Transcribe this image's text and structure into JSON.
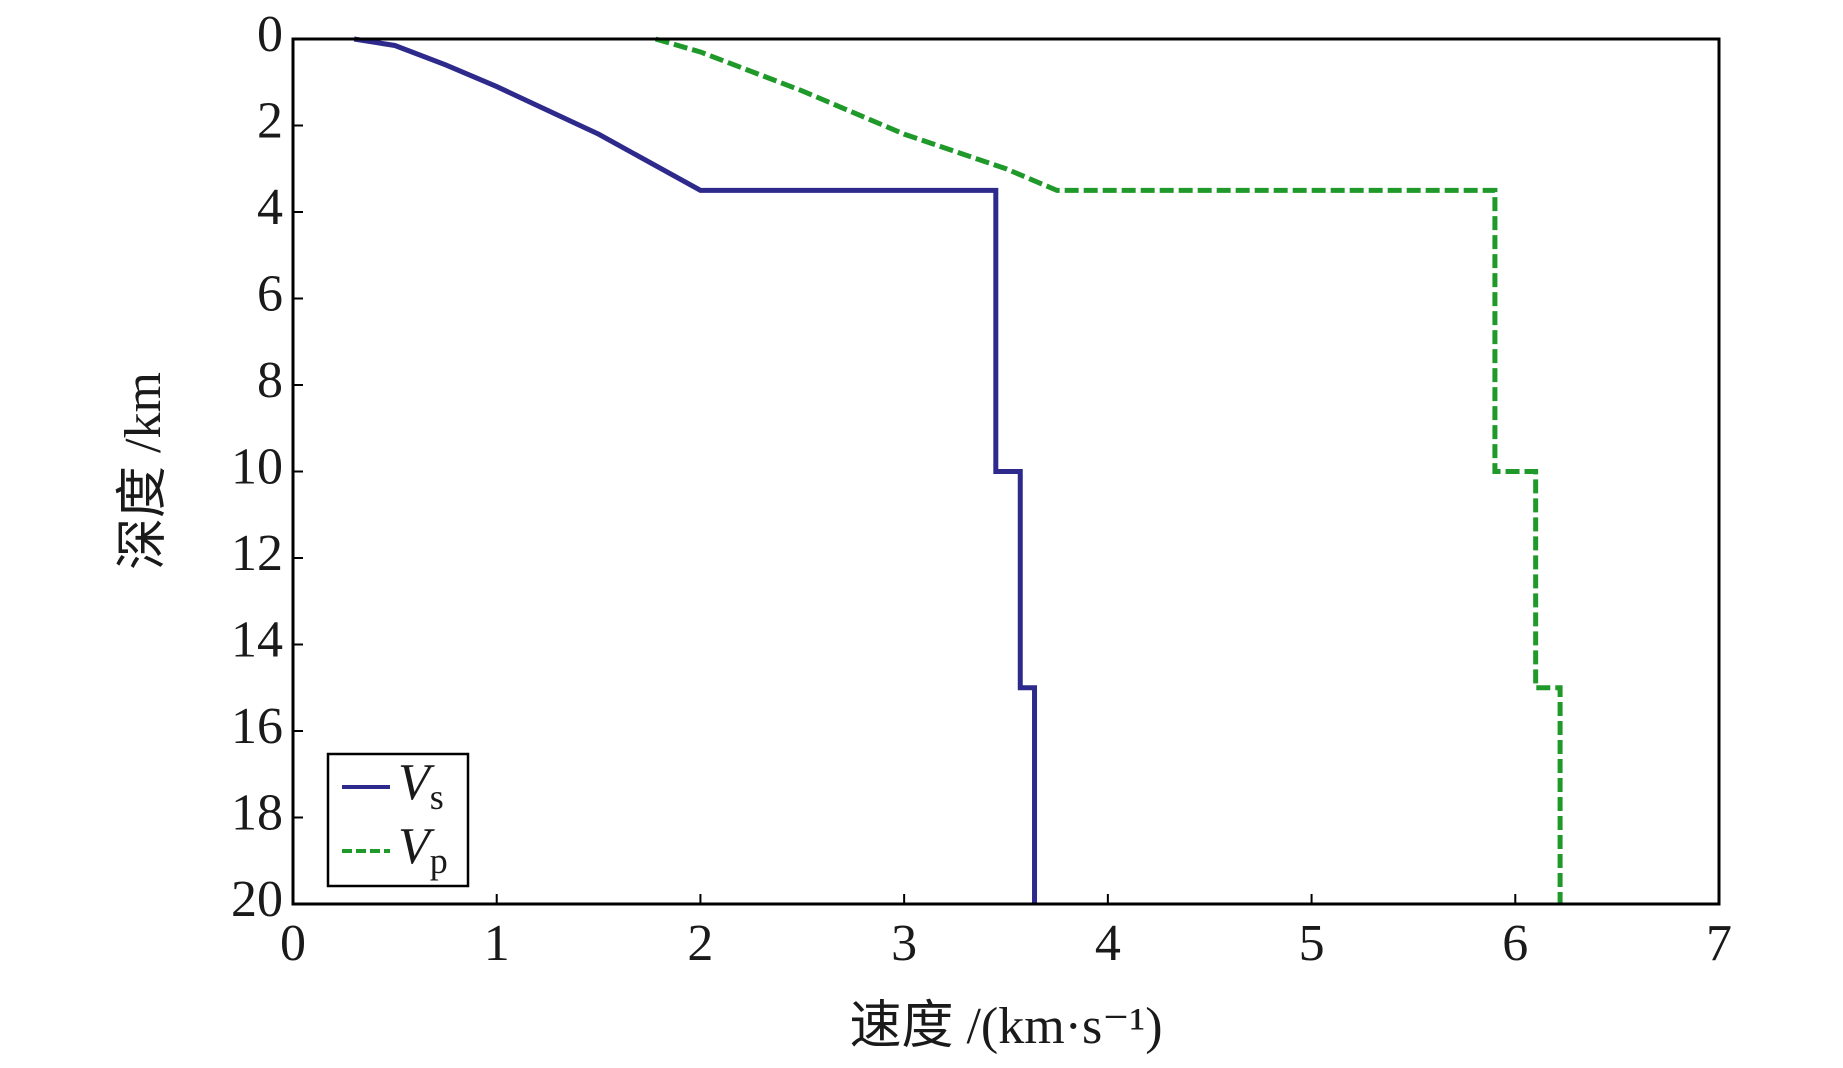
{
  "chart_data": {
    "type": "line",
    "xlabel": "速度 /(km·s⁻¹)",
    "ylabel": "深度 /km",
    "xlim": [
      0,
      7
    ],
    "xticks": [
      0,
      1,
      2,
      3,
      4,
      5,
      6,
      7
    ],
    "ylim": [
      0,
      20
    ],
    "yticks": [
      0,
      2,
      4,
      6,
      8,
      10,
      12,
      14,
      16,
      18,
      20
    ],
    "y_inverted": true,
    "legend": "lower left",
    "series": [
      {
        "name": "Vs",
        "color": "#2e2a8c",
        "dash": false,
        "x": [
          0.3,
          0.5,
          0.75,
          1,
          1.5,
          2,
          3.45,
          3.45,
          3.57,
          3.57,
          3.64,
          3.64
        ],
        "values": [
          0,
          0.15,
          0.6,
          1.1,
          2.2,
          3.5,
          3.5,
          10,
          10,
          15,
          15,
          20
        ]
      },
      {
        "name": "Vp",
        "color": "#1f9a2a",
        "dash": true,
        "x": [
          1.78,
          2,
          2.5,
          3,
          3.5,
          3.75,
          5.9,
          5.9,
          6.1,
          6.1,
          6.22,
          6.22
        ],
        "values": [
          0,
          0.3,
          1.2,
          2.2,
          3.0,
          3.5,
          3.5,
          10,
          10,
          15,
          15,
          20
        ]
      }
    ]
  }
}
